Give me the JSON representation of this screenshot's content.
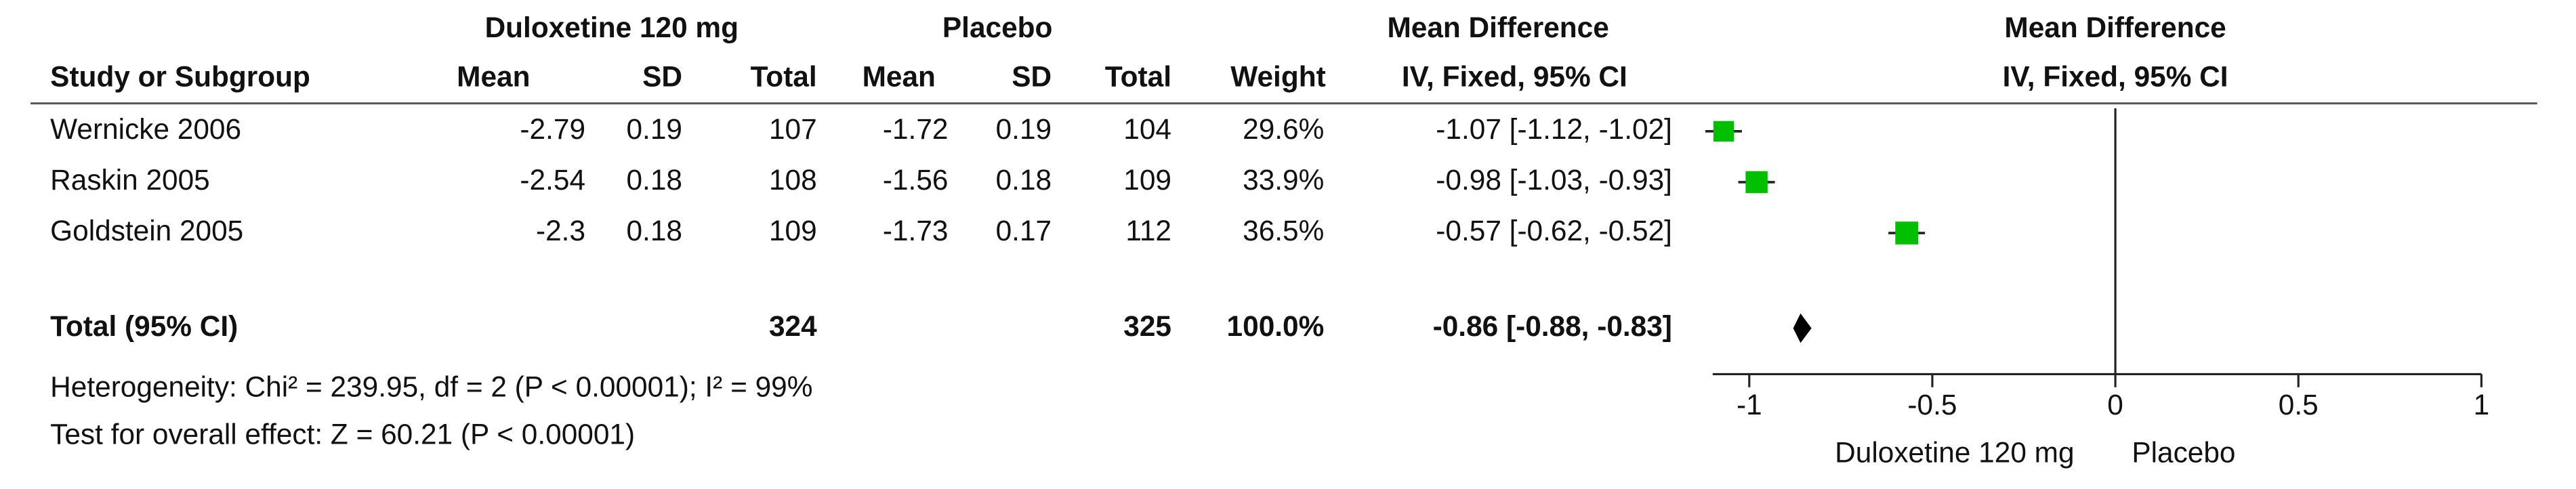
{
  "chart_data": {
    "type": "forest",
    "group_headers": [
      "Duloxetine 120 mg",
      "Placebo",
      "Mean Difference",
      "Mean Difference"
    ],
    "columns": [
      "Study or Subgroup",
      "Mean",
      "SD",
      "Total",
      "Mean",
      "SD",
      "Total",
      "Weight",
      "IV, Fixed, 95% CI",
      "IV, Fixed, 95% CI"
    ],
    "studies": [
      {
        "name": "Wernicke 2006",
        "exp_mean": -2.79,
        "exp_sd": 0.19,
        "exp_total": 107,
        "ctl_mean": -1.72,
        "ctl_sd": 0.19,
        "ctl_total": 104,
        "weight": 29.6,
        "weight_label": "29.6%",
        "md": -1.07,
        "ci_low": -1.12,
        "ci_high": -1.02,
        "ci_label": "-1.07 [-1.12, -1.02]"
      },
      {
        "name": "Raskin 2005",
        "exp_mean": -2.54,
        "exp_sd": 0.18,
        "exp_total": 108,
        "ctl_mean": -1.56,
        "ctl_sd": 0.18,
        "ctl_total": 109,
        "weight": 33.9,
        "weight_label": "33.9%",
        "md": -0.98,
        "ci_low": -1.03,
        "ci_high": -0.93,
        "ci_label": "-0.98 [-1.03, -0.93]"
      },
      {
        "name": "Goldstein 2005",
        "exp_mean": -2.3,
        "exp_sd": 0.18,
        "exp_total": 109,
        "ctl_mean": -1.73,
        "ctl_sd": 0.17,
        "ctl_total": 112,
        "weight": 36.5,
        "weight_label": "36.5%",
        "md": -0.57,
        "ci_low": -0.62,
        "ci_high": -0.52,
        "ci_label": "-0.57 [-0.62, -0.52]"
      }
    ],
    "total": {
      "name": "Total (95% CI)",
      "exp_total": 324,
      "ctl_total": 325,
      "weight": 100,
      "weight_label": "100.0%",
      "md": -0.86,
      "ci_low": -0.88,
      "ci_high": -0.83,
      "ci_label": "-0.86 [-0.88, -0.83]"
    },
    "heterogeneity": "Heterogeneity: Chi² = 239.95, df = 2 (P < 0.00001); I² = 99%",
    "overall_effect": "Test for overall effect: Z = 60.21 (P < 0.00001)",
    "favours_left": "Duloxetine 120 mg",
    "favours_right": "Placebo",
    "xlim": [
      -1.1,
      1
    ],
    "xticks": [
      -1,
      -0.5,
      0,
      0.5,
      1
    ],
    "square_color": "#00c000",
    "diamond_color": "#000000"
  }
}
